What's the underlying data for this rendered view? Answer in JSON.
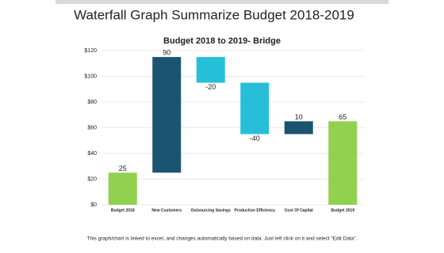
{
  "chart_data": {
    "type": "waterfall",
    "title": "Waterfall Graph Summarize Budget 2018-2019",
    "subtitle": "Budget 2018 to 2019-  Bridge",
    "footnote": "This graph/chart is linked to excel, and changes automatically based on data. Just left click on it and select \"Edit Data\".",
    "categories": [
      "Budget 2018",
      "New Customers",
      "Outsourcing Savings",
      "Production Efficiency",
      "Cost Of Capital",
      "Budget 2019"
    ],
    "values": [
      25,
      90,
      -20,
      -40,
      10,
      65
    ],
    "measures": [
      "total",
      "relative",
      "relative",
      "relative",
      "relative",
      "total"
    ],
    "colors": [
      "#92d050",
      "#1b5470",
      "#27bfd8",
      "#27bfd8",
      "#1b5470",
      "#92d050"
    ],
    "ylim": [
      0,
      120
    ],
    "yticks": [
      {
        "value": 0,
        "label": "$0"
      },
      {
        "value": 20,
        "label": "$20"
      },
      {
        "value": 40,
        "label": "$40"
      },
      {
        "value": 60,
        "label": "$60"
      },
      {
        "value": 80,
        "label": "$80"
      },
      {
        "value": 100,
        "label": "$100"
      },
      {
        "value": 120,
        "label": "$120"
      }
    ],
    "grid": true
  }
}
